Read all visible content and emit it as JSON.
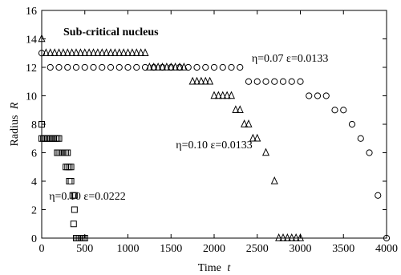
{
  "chart_data": {
    "type": "scatter",
    "title": "Sub-critical nucleus",
    "xlabel": "Time",
    "xlabel_var": "t",
    "ylabel": "Radius",
    "ylabel_var": "R",
    "xlim": [
      0,
      4000
    ],
    "ylim": [
      0,
      16
    ],
    "xticks": [
      0,
      500,
      1000,
      1500,
      2000,
      2500,
      3000,
      3500,
      4000
    ],
    "yticks": [
      0,
      2,
      4,
      6,
      8,
      10,
      12,
      14,
      16
    ],
    "grid": false,
    "series": [
      {
        "marker": "circle",
        "points": [
          [
            0,
            13
          ],
          [
            100,
            12
          ],
          [
            200,
            12
          ],
          [
            300,
            12
          ],
          [
            400,
            12
          ],
          [
            500,
            12
          ],
          [
            600,
            12
          ],
          [
            700,
            12
          ],
          [
            800,
            12
          ],
          [
            900,
            12
          ],
          [
            1000,
            12
          ],
          [
            1100,
            12
          ],
          [
            1200,
            12
          ],
          [
            1300,
            12
          ],
          [
            1400,
            12
          ],
          [
            1500,
            12
          ],
          [
            1600,
            12
          ],
          [
            1700,
            12
          ],
          [
            1800,
            12
          ],
          [
            1900,
            12
          ],
          [
            2000,
            12
          ],
          [
            2100,
            12
          ],
          [
            2200,
            12
          ],
          [
            2300,
            12
          ],
          [
            2400,
            11
          ],
          [
            2500,
            11
          ],
          [
            2600,
            11
          ],
          [
            2700,
            11
          ],
          [
            2800,
            11
          ],
          [
            2900,
            11
          ],
          [
            3000,
            11
          ],
          [
            3100,
            10
          ],
          [
            3200,
            10
          ],
          [
            3300,
            10
          ],
          [
            3400,
            9
          ],
          [
            3500,
            9
          ],
          [
            3600,
            8
          ],
          [
            3700,
            7
          ],
          [
            3800,
            6
          ],
          [
            3900,
            3
          ],
          [
            4000,
            0
          ]
        ]
      },
      {
        "marker": "triangle",
        "points": [
          [
            0,
            14
          ],
          [
            50,
            13
          ],
          [
            100,
            13
          ],
          [
            150,
            13
          ],
          [
            200,
            13
          ],
          [
            250,
            13
          ],
          [
            300,
            13
          ],
          [
            350,
            13
          ],
          [
            400,
            13
          ],
          [
            450,
            13
          ],
          [
            500,
            13
          ],
          [
            550,
            13
          ],
          [
            600,
            13
          ],
          [
            650,
            13
          ],
          [
            700,
            13
          ],
          [
            750,
            13
          ],
          [
            800,
            13
          ],
          [
            850,
            13
          ],
          [
            900,
            13
          ],
          [
            950,
            13
          ],
          [
            1000,
            13
          ],
          [
            1050,
            13
          ],
          [
            1100,
            13
          ],
          [
            1150,
            13
          ],
          [
            1200,
            13
          ],
          [
            1250,
            12
          ],
          [
            1300,
            12
          ],
          [
            1350,
            12
          ],
          [
            1400,
            12
          ],
          [
            1450,
            12
          ],
          [
            1500,
            12
          ],
          [
            1550,
            12
          ],
          [
            1600,
            12
          ],
          [
            1650,
            12
          ],
          [
            1750,
            11
          ],
          [
            1800,
            11
          ],
          [
            1850,
            11
          ],
          [
            1900,
            11
          ],
          [
            1950,
            11
          ],
          [
            2000,
            10
          ],
          [
            2050,
            10
          ],
          [
            2100,
            10
          ],
          [
            2150,
            10
          ],
          [
            2200,
            10
          ],
          [
            2250,
            9
          ],
          [
            2300,
            9
          ],
          [
            2350,
            8
          ],
          [
            2400,
            8
          ],
          [
            2450,
            7
          ],
          [
            2500,
            7
          ],
          [
            2600,
            6
          ],
          [
            2700,
            4
          ],
          [
            2750,
            0
          ],
          [
            2800,
            0
          ],
          [
            2850,
            0
          ],
          [
            2900,
            0
          ],
          [
            2950,
            0
          ],
          [
            3000,
            0
          ]
        ]
      },
      {
        "marker": "square",
        "points": [
          [
            0,
            8
          ],
          [
            0,
            7
          ],
          [
            20,
            7
          ],
          [
            40,
            7
          ],
          [
            60,
            7
          ],
          [
            80,
            7
          ],
          [
            100,
            7
          ],
          [
            120,
            7
          ],
          [
            140,
            7
          ],
          [
            160,
            7
          ],
          [
            180,
            7
          ],
          [
            200,
            7
          ],
          [
            180,
            6
          ],
          [
            200,
            6
          ],
          [
            220,
            6
          ],
          [
            240,
            6
          ],
          [
            260,
            6
          ],
          [
            280,
            6
          ],
          [
            300,
            6
          ],
          [
            280,
            5
          ],
          [
            300,
            5
          ],
          [
            320,
            5
          ],
          [
            340,
            5
          ],
          [
            320,
            4
          ],
          [
            340,
            4
          ],
          [
            360,
            3
          ],
          [
            380,
            3
          ],
          [
            380,
            2
          ],
          [
            370,
            1
          ],
          [
            400,
            0
          ],
          [
            420,
            0
          ],
          [
            440,
            0
          ],
          [
            460,
            0
          ],
          [
            480,
            0
          ],
          [
            500,
            0
          ]
        ]
      }
    ],
    "annotations": [
      {
        "text": "η=0.07 ε=0.0133",
        "x": 2880,
        "y": 12.4
      },
      {
        "text": "η=0.10 ε=0.0133",
        "x": 2000,
        "y": 6.3
      },
      {
        "text": "η=0.10 ε=0.0222",
        "x": 530,
        "y": 2.7
      }
    ]
  }
}
